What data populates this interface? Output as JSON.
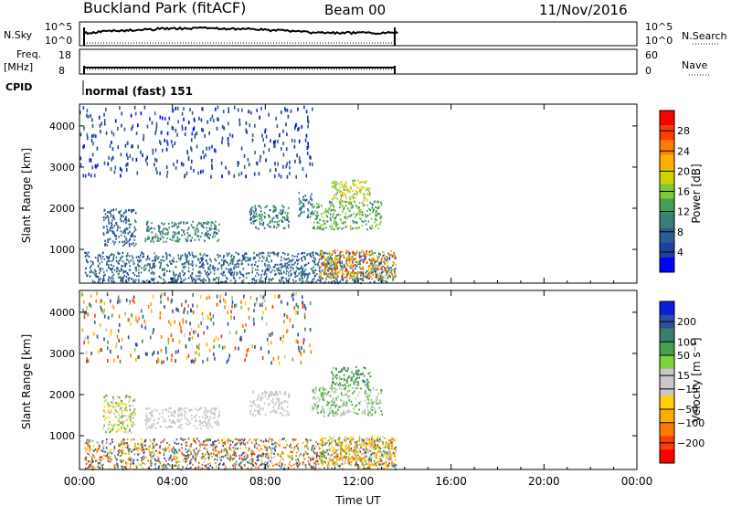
{
  "header": {
    "title": "Buckland Park (fitACF)",
    "beam": "Beam 00",
    "date": "11/Nov/2016"
  },
  "strips": {
    "nsky_label": "N.Sky",
    "nsky_hi": "10^5",
    "nsky_lo": "10^0",
    "nsearch_label": "N.Search",
    "nsearch_hi": "10^5",
    "nsearch_lo": "10^0",
    "freq_label": "Freq.",
    "freq_unit": "[MHz]",
    "freq_hi": "18",
    "freq_lo": "8",
    "nave_label": "Nave",
    "nave_hi": "60",
    "nave_lo": "0",
    "cpid_label": "CPID",
    "cpid_value": "normal (fast) 151"
  },
  "chart_data": [
    {
      "type": "heatmap",
      "title": "",
      "xlabel": "Time UT",
      "ylabel": "Slant Range [km]",
      "x_ticks": [
        "00:00",
        "04:00",
        "08:00",
        "12:00",
        "16:00",
        "20:00",
        "00:00"
      ],
      "xlim_hours": [
        0,
        24
      ],
      "data_end_hour": 13.7,
      "y_ticks": [
        1000,
        2000,
        3000,
        4000
      ],
      "ylim": [
        180,
        4530
      ],
      "colorbar": {
        "label": "Power [dB]",
        "ticks": [
          4,
          8,
          12,
          16,
          20,
          24,
          28
        ],
        "range": [
          0,
          32
        ],
        "colors": [
          "#0000ff",
          "#2040a0",
          "#2c5c96",
          "#3a7e7a",
          "#44a054",
          "#7ec83a",
          "#d2d200",
          "#ffb000",
          "#ff7a00",
          "#ff3c00",
          "#ff0000"
        ]
      },
      "echo_regions": [
        {
          "t0": 0.2,
          "t1": 13.6,
          "r0": 200,
          "r1": 950,
          "level_min": 4,
          "level_max": 12
        },
        {
          "t0": 1.0,
          "t1": 2.4,
          "r0": 1100,
          "r1": 2000,
          "level_min": 4,
          "level_max": 10
        },
        {
          "t0": 2.8,
          "t1": 6.0,
          "r0": 1200,
          "r1": 1700,
          "level_min": 6,
          "level_max": 14
        },
        {
          "t0": 7.3,
          "t1": 9.0,
          "r0": 1500,
          "r1": 2100,
          "level_min": 6,
          "level_max": 14
        },
        {
          "t0": 9.4,
          "t1": 10.0,
          "r0": 1800,
          "r1": 2400,
          "level_min": 6,
          "level_max": 12
        },
        {
          "t0": 10.0,
          "t1": 13.0,
          "r0": 1500,
          "r1": 2200,
          "level_min": 10,
          "level_max": 18
        },
        {
          "t0": 10.8,
          "t1": 12.5,
          "r0": 2200,
          "r1": 2700,
          "level_min": 14,
          "level_max": 22
        },
        {
          "t0": 10.3,
          "t1": 13.6,
          "r0": 300,
          "r1": 1000,
          "level_min": 14,
          "level_max": 30
        },
        {
          "t0": 0.0,
          "t1": 10.0,
          "r0": 2800,
          "r1": 4500,
          "level_min": 2,
          "level_max": 8
        }
      ]
    },
    {
      "type": "heatmap",
      "title": "",
      "xlabel": "Time UT",
      "ylabel": "Slant Range [km]",
      "x_ticks": [
        "00:00",
        "04:00",
        "08:00",
        "12:00",
        "16:00",
        "20:00",
        "00:00"
      ],
      "xlim_hours": [
        0,
        24
      ],
      "data_end_hour": 13.7,
      "y_ticks": [
        1000,
        2000,
        3000,
        4000
      ],
      "ylim": [
        180,
        4530
      ],
      "colorbar": {
        "label": "Velocity [m s⁻¹]",
        "ticks": [
          "200",
          "100",
          "50",
          "15",
          "−15",
          "−50",
          "−100",
          "−200"
        ],
        "colors": [
          "#0a1edc",
          "#2e4e9e",
          "#3a7e6e",
          "#48a048",
          "#7ed23c",
          "#c8c8c8",
          "#c8c8c8",
          "#ffd200",
          "#ffaa00",
          "#ff7a00",
          "#ff3c00",
          "#ff0000"
        ]
      },
      "echo_regions": [
        {
          "t0": 0.2,
          "t1": 13.6,
          "r0": 200,
          "r1": 950,
          "vel_min": -200,
          "vel_max": 200
        },
        {
          "t0": 1.0,
          "t1": 2.4,
          "r0": 1100,
          "r1": 2000,
          "vel_min": -50,
          "vel_max": 50
        },
        {
          "t0": 2.8,
          "t1": 6.0,
          "r0": 1200,
          "r1": 1700,
          "vel_min": -15,
          "vel_max": 15
        },
        {
          "t0": 7.3,
          "t1": 9.0,
          "r0": 1500,
          "r1": 2100,
          "vel_min": -15,
          "vel_max": 15
        },
        {
          "t0": 10.0,
          "t1": 13.0,
          "r0": 1500,
          "r1": 2200,
          "vel_min": -15,
          "vel_max": 50
        },
        {
          "t0": 10.8,
          "t1": 12.5,
          "r0": 2200,
          "r1": 2700,
          "vel_min": 15,
          "vel_max": 100
        },
        {
          "t0": 10.3,
          "t1": 13.6,
          "r0": 300,
          "r1": 1000,
          "vel_min": -100,
          "vel_max": 50
        },
        {
          "t0": 0.0,
          "t1": 10.0,
          "r0": 2800,
          "r1": 4500,
          "vel_min": -200,
          "vel_max": 200
        }
      ]
    }
  ]
}
